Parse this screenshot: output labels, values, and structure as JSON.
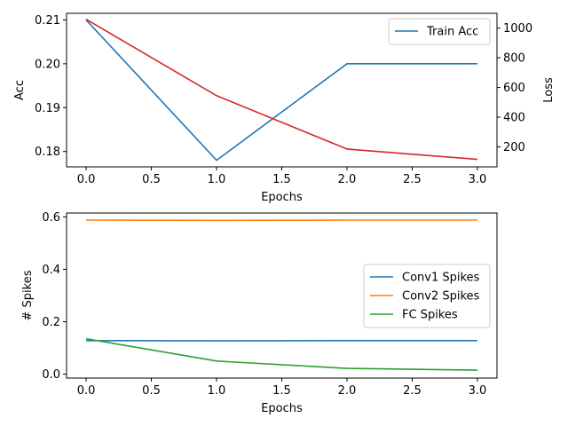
{
  "chart_data": [
    {
      "type": "line",
      "x": [
        0,
        1,
        2,
        3
      ],
      "xlabel": "Epochs",
      "ylabel": "Acc",
      "ylabel_right": "Loss",
      "xlim": [
        -0.15,
        3.15
      ],
      "ylim": [
        0.1765,
        0.2115
      ],
      "ylim_right": [
        65,
        1100
      ],
      "xticks": [
        "0.0",
        "0.5",
        "1.0",
        "1.5",
        "2.0",
        "2.5",
        "3.0"
      ],
      "yticks": [
        "0.18",
        "0.19",
        "0.20",
        "0.21"
      ],
      "yticks_right": [
        "200",
        "400",
        "600",
        "800",
        "1000"
      ],
      "legend_position": "top-right",
      "grid": false,
      "series": [
        {
          "name": "Train Acc",
          "axis": "left",
          "color": "#1f77b4",
          "values": [
            0.21,
            0.178,
            0.2,
            0.2
          ]
        },
        {
          "axis": "right",
          "color": "#d62728",
          "values": [
            1060,
            545,
            185,
            115
          ]
        }
      ]
    },
    {
      "type": "line",
      "x": [
        0,
        1,
        2,
        3
      ],
      "xlabel": "Epochs",
      "ylabel": "# Spikes",
      "xlim": [
        -0.15,
        3.15
      ],
      "ylim": [
        -0.015,
        0.615
      ],
      "xticks": [
        "0.0",
        "0.5",
        "1.0",
        "1.5",
        "2.0",
        "2.5",
        "3.0"
      ],
      "yticks": [
        "0.0",
        "0.2",
        "0.4",
        "0.6"
      ],
      "legend_position": "center-right",
      "grid": false,
      "series": [
        {
          "name": "Conv1 Spikes",
          "color": "#1f77b4",
          "values": [
            0.128,
            0.127,
            0.128,
            0.128
          ]
        },
        {
          "name": "Conv2 Spikes",
          "color": "#ff7f0e",
          "values": [
            0.588,
            0.587,
            0.588,
            0.588
          ]
        },
        {
          "name": "FC Spikes",
          "color": "#2ca02c",
          "values": [
            0.135,
            0.05,
            0.022,
            0.015
          ]
        }
      ]
    }
  ]
}
